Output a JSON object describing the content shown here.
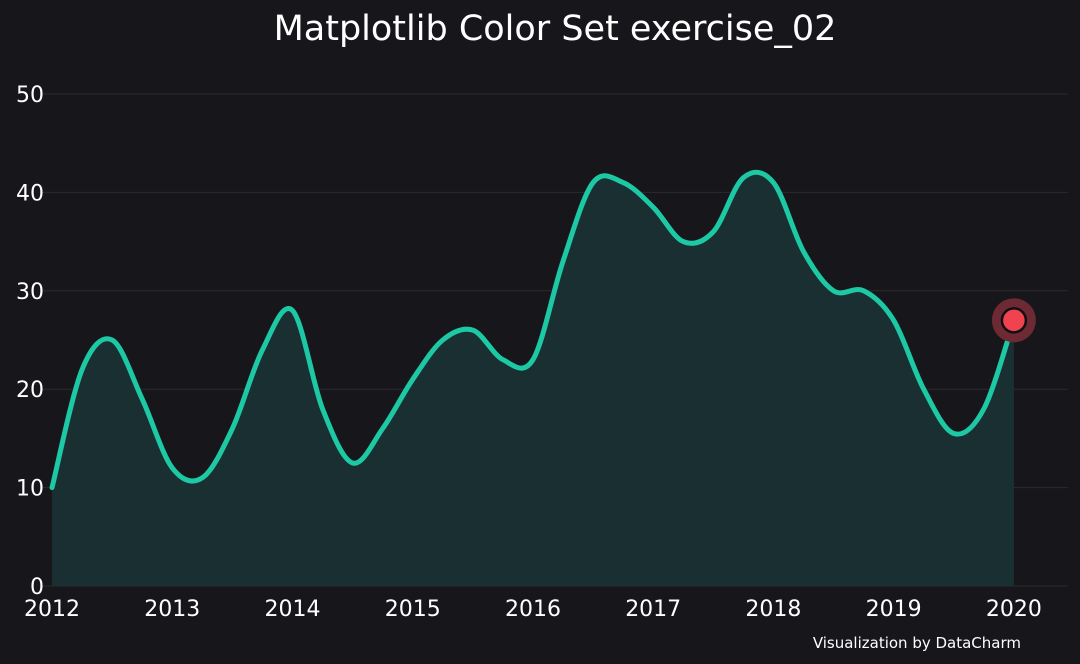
{
  "chart_data": {
    "type": "area",
    "title": "Matplotlib Color Set exercise_02",
    "xlabel": "",
    "ylabel": "",
    "x_ticks": [
      "2012",
      "2013",
      "2014",
      "2015",
      "2016",
      "2017",
      "2018",
      "2019",
      "2020"
    ],
    "y_ticks": [
      "0",
      "10",
      "20",
      "30",
      "40",
      "50"
    ],
    "ylim": [
      0,
      50
    ],
    "xlim": [
      2011.9,
      2020.45
    ],
    "grid": "horizontal",
    "x": [
      2012.0,
      2012.25,
      2012.5,
      2012.75,
      2013.0,
      2013.25,
      2013.5,
      2013.75,
      2014.0,
      2014.25,
      2014.5,
      2014.75,
      2015.0,
      2015.25,
      2015.5,
      2015.75,
      2016.0,
      2016.25,
      2016.5,
      2016.75,
      2017.0,
      2017.25,
      2017.5,
      2017.75,
      2018.0,
      2018.25,
      2018.5,
      2018.75,
      2019.0,
      2019.25,
      2019.5,
      2019.75,
      2020.0
    ],
    "y": [
      10,
      22,
      25,
      19,
      12,
      11,
      16,
      24,
      28,
      18,
      12.5,
      16,
      21,
      25,
      26,
      23,
      23,
      33,
      41,
      41,
      38.5,
      35,
      36,
      41.5,
      41,
      34,
      30,
      30,
      27,
      20,
      15.5,
      18,
      27
    ],
    "highlight": {
      "x": 2020,
      "y": 27
    },
    "colors": {
      "background": "#17161b",
      "line": "#1cc9a4",
      "fill": "#1a2f32",
      "grid": "#2b2a30",
      "marker": "#f0424f",
      "marker_halo": "#6e2a33",
      "text": "#ffffff"
    }
  },
  "credit": "Visualization by DataCharm"
}
